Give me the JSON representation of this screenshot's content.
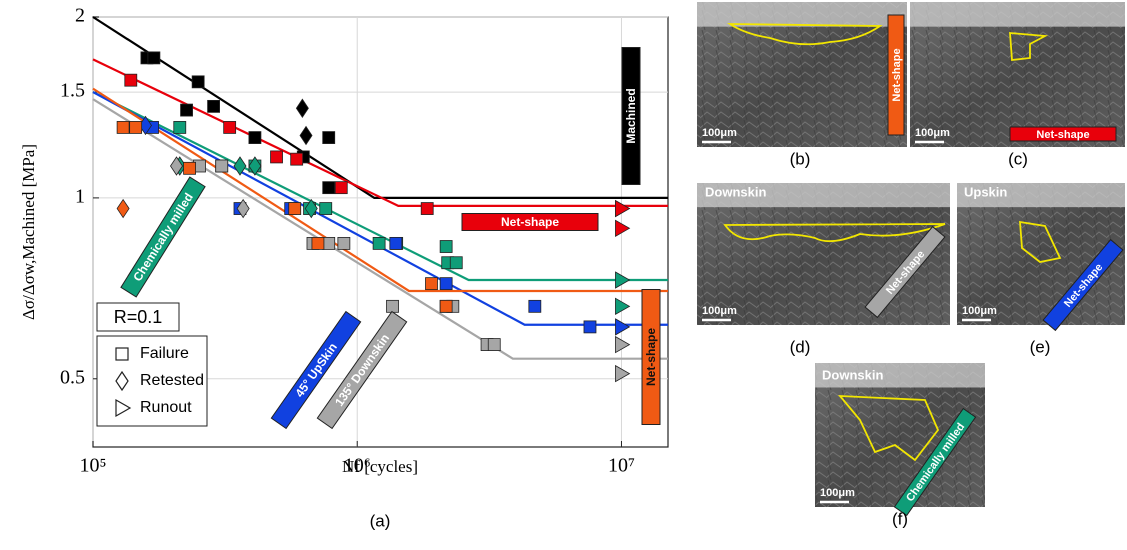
{
  "chart_data": {
    "type": "scatter",
    "y_label": "Δσ/Δσw,Machined [MPa]",
    "x_label": "Nf [cycles]",
    "caption": "(a)",
    "log_x": true,
    "log_y": true,
    "grid": true,
    "xlim": [
      100000,
      15000000
    ],
    "ylim": [
      0.385,
      2
    ],
    "xticks": [
      {
        "value": 100000,
        "label": "10⁵"
      },
      {
        "value": 1000000,
        "label": "10⁶"
      },
      {
        "value": 10000000,
        "label": "10⁷"
      }
    ],
    "yticks": [
      0.5,
      1,
      1.5,
      2
    ],
    "annotation": "R=0.1",
    "legend": [
      "Failure",
      "Retested",
      "Runout"
    ],
    "series": [
      {
        "name": "Machined",
        "color": "#000000",
        "failure": {
          "x": [
            160000,
            170000,
            250000,
            226000,
            286000,
            410000,
            625000,
            780000,
            780000
          ],
          "y": [
            1.71,
            1.71,
            1.56,
            1.4,
            1.42,
            1.26,
            1.17,
            1.26,
            1.04
          ]
        },
        "retested": {
          "x": [
            620000,
            640000
          ],
          "y": [
            1.41,
            1.27
          ]
        },
        "runout": {
          "x": [
            10000000
          ],
          "y": [
            0.96
          ]
        },
        "fit": {
          "x": [
            100000,
            1160000,
            15000000
          ],
          "y": [
            2,
            1,
            1
          ]
        }
      },
      {
        "name": "Net-shape",
        "color": "#e8000b",
        "failure": {
          "x": [
            139000,
            329000,
            495000,
            590000,
            870000,
            1840000
          ],
          "y": [
            1.57,
            1.31,
            1.17,
            1.16,
            1.04,
            0.96
          ]
        },
        "retested": {
          "x": [],
          "y": []
        },
        "runout": {
          "x": [
            10000000,
            10000000
          ],
          "y": [
            0.96,
            0.89
          ]
        },
        "fit": {
          "x": [
            100000,
            1430000,
            15000000
          ],
          "y": [
            1.7,
            0.97,
            0.97
          ]
        }
      },
      {
        "name": "Chemically milled",
        "color": "#0f9d78",
        "failure": {
          "x": [
            213000,
            307000,
            410000,
            660000,
            760000,
            1210000,
            1410000,
            2170000,
            2200000,
            2370000
          ],
          "y": [
            1.31,
            1.13,
            1.13,
            0.96,
            0.96,
            0.84,
            0.84,
            0.83,
            0.78,
            0.78
          ]
        },
        "retested": {
          "x": [
            213000,
            360000,
            410000,
            670000
          ],
          "y": [
            1.13,
            1.13,
            1.13,
            0.96
          ]
        },
        "runout": {
          "x": [
            10000000,
            10000000
          ],
          "y": [
            0.73,
            0.66
          ]
        },
        "fit": {
          "x": [
            100000,
            2640000,
            15000000
          ],
          "y": [
            1.5,
            0.73,
            0.73
          ]
        }
      },
      {
        "name": "45° UpSkin",
        "color": "#1141e0",
        "failure": {
          "x": [
            168000,
            360000,
            560000,
            1400000,
            2170000,
            4700000,
            7600000
          ],
          "y": [
            1.31,
            0.96,
            0.96,
            0.84,
            0.72,
            0.66,
            0.61
          ]
        },
        "retested": {
          "x": [
            158000
          ],
          "y": [
            1.32
          ]
        },
        "runout": {
          "x": [
            10000000
          ],
          "y": [
            0.61
          ]
        },
        "fit": {
          "x": [
            100000,
            4300000,
            15000000
          ],
          "y": [
            1.5,
            0.615,
            0.615
          ]
        }
      },
      {
        "name": "135° Downskin",
        "color": "#a6a6a6",
        "failure": {
          "x": [
            253000,
            307000,
            680000,
            780000,
            890000,
            1360000,
            2170000,
            2300000,
            3100000,
            3300000
          ],
          "y": [
            1.13,
            1.13,
            0.84,
            0.84,
            0.84,
            0.66,
            0.66,
            0.66,
            0.57,
            0.57
          ]
        },
        "retested": {
          "x": [
            207000,
            370000
          ],
          "y": [
            1.13,
            0.96
          ]
        },
        "runout": {
          "x": [
            10000000,
            10000000
          ],
          "y": [
            0.57,
            0.51
          ]
        },
        "fit": {
          "x": [
            100000,
            3880000,
            15000000
          ],
          "y": [
            1.46,
            0.54,
            0.54
          ]
        }
      },
      {
        "name": "Net-shape",
        "color": "#f05a14",
        "failure": {
          "x": [
            130000,
            145000,
            232000,
            580000,
            710000,
            1910000,
            2170000
          ],
          "y": [
            1.31,
            1.31,
            1.12,
            0.96,
            0.84,
            0.72,
            0.66
          ]
        },
        "retested": {
          "x": [
            130000
          ],
          "y": [
            0.96
          ]
        },
        "runout": {
          "x": [],
          "y": []
        },
        "fit": {
          "x": [
            100000,
            1570000,
            15000000
          ],
          "y": [
            1.52,
            0.7,
            0.7
          ]
        }
      }
    ]
  },
  "panels": [
    {
      "caption": "(b)",
      "scale": "100μm",
      "tag": "Net-shape"
    },
    {
      "caption": "(c)",
      "scale": "100μm",
      "tag": "Net-shape"
    },
    {
      "caption": "(d)",
      "title": "Downskin",
      "scale": "100μm",
      "tag": "Net-shape"
    },
    {
      "caption": "(e)",
      "title": "Upskin",
      "scale": "100μm",
      "tag": "Net-shape"
    },
    {
      "caption": "(f)",
      "title": "Downskin",
      "scale": "100μm",
      "tag": "Chemically milled"
    }
  ]
}
